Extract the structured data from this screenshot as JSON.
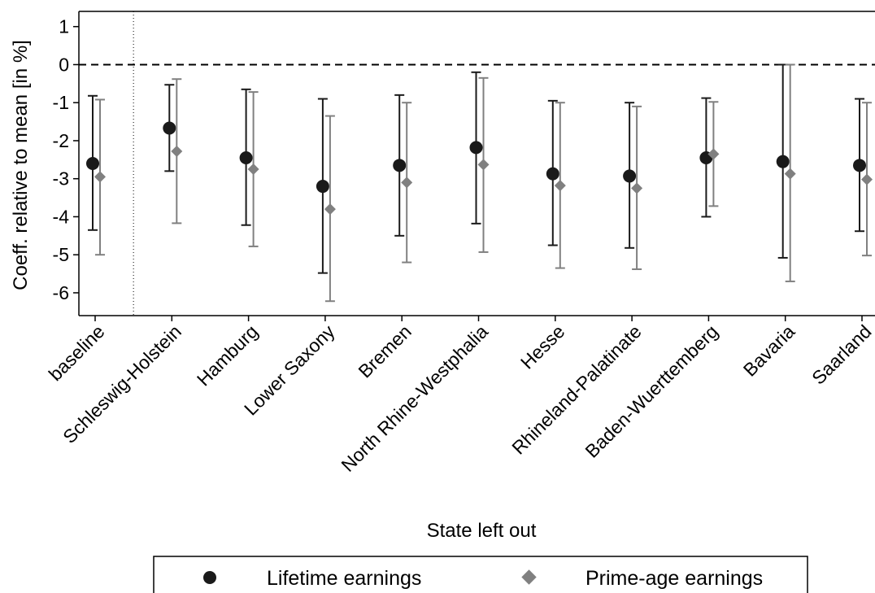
{
  "chart_data": {
    "type": "scatter",
    "title": "",
    "xlabel": "State left out",
    "ylabel": "Coeff. relative to mean [in %]",
    "ylim": [
      -6.6,
      1.4
    ],
    "yticks": [
      1,
      0,
      -1,
      -2,
      -3,
      -4,
      -5,
      -6
    ],
    "ytick_labels": [
      "1",
      "0",
      "-1",
      "-2",
      "-3",
      "-4",
      "-5",
      "-6"
    ],
    "reference_line_y": 0,
    "separator_after_category": "baseline",
    "grid": false,
    "legend_position": "bottom",
    "categories": [
      "baseline",
      "Schleswig-Holstein",
      "Hamburg",
      "Lower Saxony",
      "Bremen",
      "North Rhine-Westphalia",
      "Hesse",
      "Rhineland-Palatinate",
      "Baden-Wuerttemberg",
      "Bavaria",
      "Saarland"
    ],
    "series": [
      {
        "name": "Lifetime earnings",
        "marker": "circle",
        "color": "#1a1a1a",
        "values": [
          -2.6,
          -1.67,
          -2.45,
          -3.2,
          -2.65,
          -2.18,
          -2.87,
          -2.93,
          -2.45,
          -2.55,
          -2.65
        ],
        "ci_low": [
          -4.35,
          -2.8,
          -4.22,
          -5.48,
          -4.5,
          -4.18,
          -4.75,
          -4.82,
          -4.0,
          -5.08,
          -4.38
        ],
        "ci_high": [
          -0.82,
          -0.53,
          -0.65,
          -0.9,
          -0.8,
          -0.2,
          -0.95,
          -1.0,
          -0.88,
          0.0,
          -0.9
        ]
      },
      {
        "name": "Prime-age earnings",
        "marker": "diamond",
        "color": "#808080",
        "values": [
          -2.95,
          -2.28,
          -2.75,
          -3.8,
          -3.1,
          -2.63,
          -3.18,
          -3.25,
          -2.35,
          -2.87,
          -3.02
        ],
        "ci_low": [
          -5.0,
          -4.17,
          -4.78,
          -6.22,
          -5.2,
          -4.93,
          -5.35,
          -5.38,
          -3.72,
          -5.7,
          -5.02
        ],
        "ci_high": [
          -0.92,
          -0.38,
          -0.72,
          -1.35,
          -1.0,
          -0.35,
          -1.0,
          -1.1,
          -0.98,
          0.0,
          -1.0
        ]
      }
    ]
  }
}
